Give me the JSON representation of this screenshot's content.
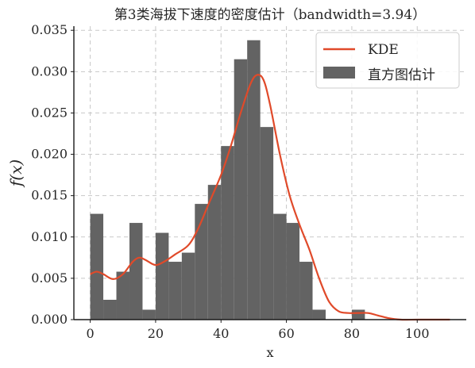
{
  "chart_data": {
    "type": "bar",
    "title": "第3类海拔下速度的密度估计（bandwidth=3.94）",
    "xlabel": "x",
    "ylabel": "f(x)",
    "xlim": [
      -5,
      115
    ],
    "ylim": [
      0,
      0.0355
    ],
    "xticks": [
      0,
      20,
      40,
      60,
      80,
      100
    ],
    "yticks": [
      0.0,
      0.005,
      0.01,
      0.015,
      0.02,
      0.025,
      0.03,
      0.035
    ],
    "ytick_labels": [
      "0.000",
      "0.005",
      "0.010",
      "0.015",
      "0.020",
      "0.025",
      "0.030",
      "0.035"
    ],
    "grid": true,
    "legend_position": "top-right",
    "histogram": {
      "name": "直方图估计",
      "color": "#636363",
      "bin_edges": [
        0,
        4,
        8,
        12,
        16,
        20,
        24,
        28,
        32,
        36,
        40,
        44,
        48,
        52,
        56,
        60,
        64,
        68,
        72,
        76,
        80,
        84
      ],
      "densities": [
        0.0128,
        0.0024,
        0.0058,
        0.0117,
        0.0012,
        0.0105,
        0.007,
        0.0081,
        0.014,
        0.0163,
        0.021,
        0.0315,
        0.0338,
        0.0233,
        0.0128,
        0.0117,
        0.007,
        0.0012,
        0.0,
        0.0,
        0.0012
      ]
    },
    "kde": {
      "name": "KDE",
      "color": "#e04a2a",
      "x": [
        0,
        2,
        4,
        7,
        10,
        13,
        15,
        17,
        20,
        23,
        26,
        30,
        33,
        36,
        40,
        43,
        46,
        49,
        51,
        53,
        55,
        58,
        61,
        64,
        67,
        70,
        73,
        76,
        79,
        82,
        85,
        88,
        91,
        95,
        100,
        105,
        110
      ],
      "y": [
        0.0055,
        0.0058,
        0.0055,
        0.0049,
        0.0055,
        0.007,
        0.0075,
        0.0072,
        0.0066,
        0.0071,
        0.0079,
        0.009,
        0.011,
        0.0138,
        0.0175,
        0.021,
        0.025,
        0.0285,
        0.0296,
        0.029,
        0.026,
        0.02,
        0.015,
        0.0115,
        0.0085,
        0.005,
        0.0022,
        0.001,
        0.0008,
        0.0008,
        0.0008,
        0.0005,
        0.0002,
        0.0,
        0.0,
        0.0,
        0.0
      ]
    }
  }
}
